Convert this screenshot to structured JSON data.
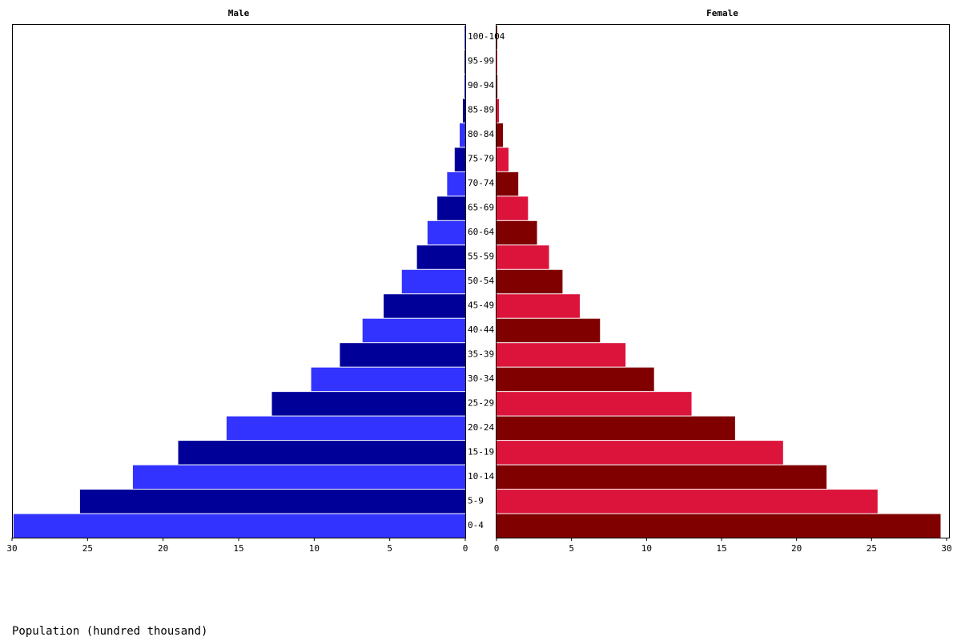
{
  "chart_data": {
    "type": "pyramid",
    "xlabel": "Population (hundred thousand)",
    "categories": [
      "0-4",
      "5-9",
      "10-14",
      "15-19",
      "20-24",
      "25-29",
      "30-34",
      "35-39",
      "40-44",
      "45-49",
      "50-54",
      "55-59",
      "60-64",
      "65-69",
      "70-74",
      "75-79",
      "80-84",
      "85-89",
      "90-94",
      "95-99",
      "100-104"
    ],
    "series": [
      {
        "name": "Male",
        "colors": [
          "#3333ff",
          "#000099"
        ],
        "values": [
          29.9,
          25.5,
          22.0,
          19.0,
          15.8,
          12.8,
          10.2,
          8.3,
          6.8,
          5.4,
          4.2,
          3.2,
          2.5,
          1.85,
          1.2,
          0.7,
          0.37,
          0.16,
          0.06,
          0.05,
          0.05
        ]
      },
      {
        "name": "Female",
        "colors": [
          "#800000",
          "#dc143c"
        ],
        "values": [
          29.6,
          25.4,
          22.0,
          19.1,
          15.9,
          13.0,
          10.5,
          8.6,
          6.9,
          5.55,
          4.4,
          3.5,
          2.7,
          2.1,
          1.45,
          0.8,
          0.43,
          0.16,
          0.06,
          0.05,
          0.05
        ]
      }
    ],
    "xlim": [
      0,
      30
    ],
    "xticks": [
      0,
      5,
      10,
      15,
      20,
      25,
      30
    ]
  }
}
